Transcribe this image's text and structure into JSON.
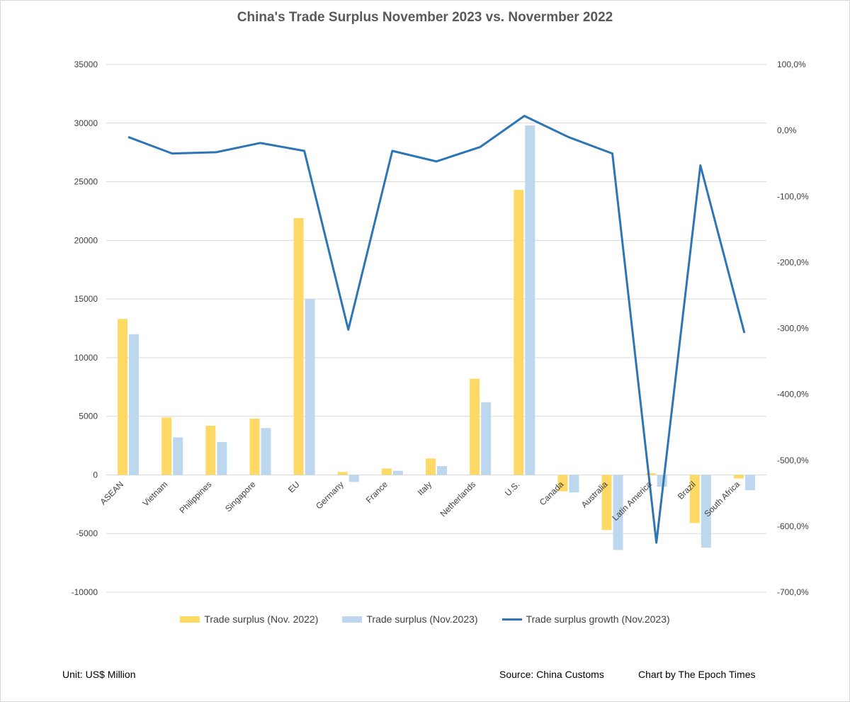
{
  "chart_data": {
    "type": "bar",
    "title": "China's Trade Surplus November 2023 vs. Novermber 2022",
    "categories": [
      "ASEAN",
      "Vietnam",
      "Philippines",
      "Singapore",
      "EU",
      "Germany",
      "France",
      "Italy",
      "Netherlands",
      "U.S.",
      "Canada",
      "Australia",
      "Latin America",
      "Brazil",
      "South Africa"
    ],
    "series": [
      {
        "name": "Trade surplus (Nov. 2022)",
        "type": "bar",
        "axis": "left",
        "color": "#FFD966",
        "values": [
          13300,
          4900,
          4200,
          4800,
          21900,
          250,
          550,
          1400,
          8200,
          24300,
          -1400,
          -4700,
          150,
          -4100,
          -300
        ]
      },
      {
        "name": "Trade surplus (Nov.2023)",
        "type": "bar",
        "axis": "left",
        "color": "#BDD7EE",
        "values": [
          12000,
          3200,
          2800,
          4000,
          15000,
          -600,
          350,
          750,
          6200,
          29800,
          -1500,
          -6400,
          -1000,
          -6200,
          -1300
        ]
      },
      {
        "name": "Trade surplus growth (Nov.2023)",
        "type": "line",
        "axis": "right",
        "color": "#2E75B6",
        "values": [
          -10,
          -35,
          -33,
          -19,
          -31,
          -302,
          -31,
          -47,
          -25,
          22,
          -10,
          -35,
          -625,
          -53,
          -307
        ]
      }
    ],
    "y_left": {
      "min": -10000,
      "max": 35000,
      "step": 5000,
      "tick_labels": [
        "-10000",
        "-5000",
        "0",
        "5000",
        "10000",
        "15000",
        "20000",
        "25000",
        "30000",
        "35000"
      ]
    },
    "y_right": {
      "min": -700,
      "max": 100,
      "step": 100,
      "tick_labels": [
        "-700,0%",
        "-600,0%",
        "-500,0%",
        "-400,0%",
        "-300,0%",
        "-200,0%",
        "-100,0%",
        "0,0%",
        "100,0%"
      ]
    },
    "grid": true,
    "legend_position": "bottom"
  },
  "footer": {
    "unit": "Unit: US$ Million",
    "source": "Source: China Customs",
    "credit": "Chart by The Epoch Times"
  }
}
